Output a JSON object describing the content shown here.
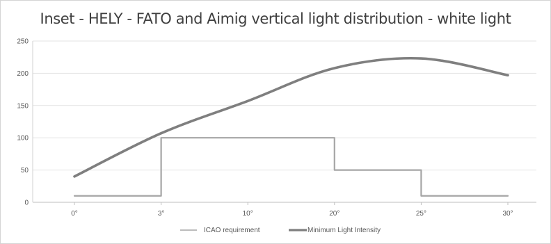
{
  "chart_data": {
    "type": "line",
    "title": "Inset - HELY - FATO and Aimig vertical light distribution - white light",
    "xlabel": "",
    "ylabel": "",
    "x_tick_labels": [
      "0°",
      "3°",
      "10°",
      "20°",
      "25°",
      "30°"
    ],
    "y_ticks": [
      0,
      50,
      100,
      150,
      200,
      250
    ],
    "ylim": [
      0,
      250
    ],
    "grid": true,
    "legend_position": "bottom",
    "series": [
      {
        "name": "ICAO requirement",
        "color": "#a6a6a6",
        "shape": "step",
        "points": [
          {
            "x": "0°",
            "y": 10
          },
          {
            "x": "3°",
            "y": 10
          },
          {
            "x": "3°",
            "y": 100
          },
          {
            "x": "20°",
            "y": 100
          },
          {
            "x": "20°",
            "y": 50
          },
          {
            "x": "25°",
            "y": 50
          },
          {
            "x": "25°",
            "y": 10
          },
          {
            "x": "30°",
            "y": 10
          }
        ]
      },
      {
        "name": "Minimum Light Intensity",
        "color": "#7f7f7f",
        "shape": "smooth",
        "points": [
          {
            "x": "0°",
            "y": 40
          },
          {
            "x": "3°",
            "y": 107
          },
          {
            "x": "10°",
            "y": 157
          },
          {
            "x": "20°",
            "y": 208
          },
          {
            "x": "25°",
            "y": 223
          },
          {
            "x": "30°",
            "y": 197
          }
        ]
      }
    ]
  }
}
